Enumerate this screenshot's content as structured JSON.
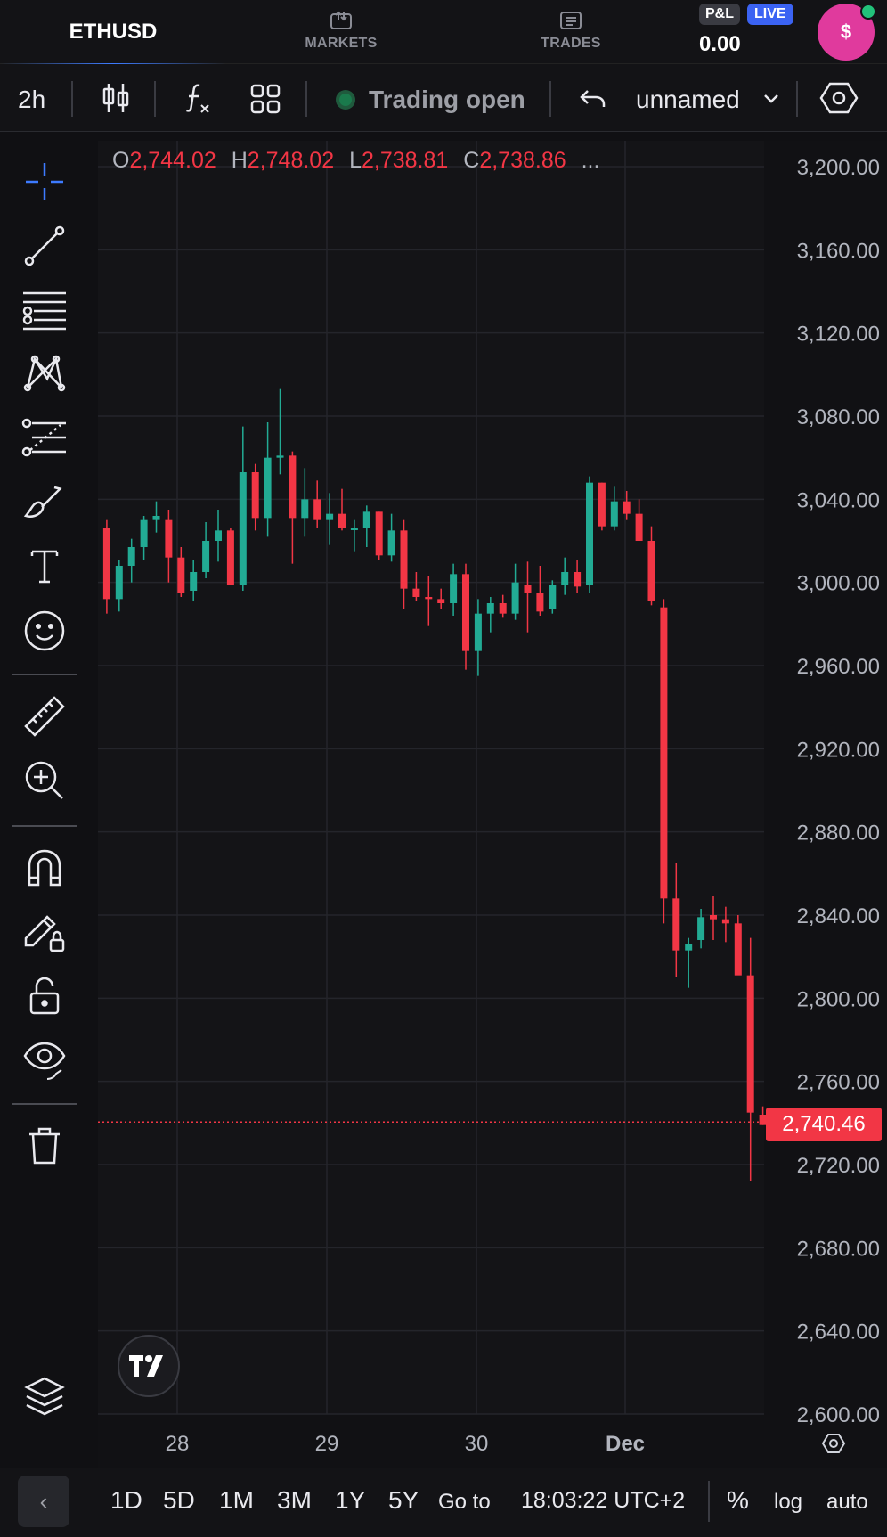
{
  "topbar": {
    "symbol_tab": "ETHUSD",
    "markets_label": "MARKETS",
    "trades_label": "TRADES",
    "pnl_badge": "P&L",
    "live_badge": "LIVE",
    "pnl_value": "0.00",
    "avatar_symbol": "$"
  },
  "toolbar": {
    "interval": "2h",
    "status": "Trading open",
    "layout_name": "unnamed",
    "icons": [
      "candles-icon",
      "indicators-fx-icon",
      "layouts-grid-icon",
      "undo-icon",
      "chevron-down-icon",
      "settings-hexagon-icon"
    ]
  },
  "left_tools": [
    "crosshair-icon",
    "trend-line-icon",
    "fib-lines-icon",
    "patterns-icon",
    "projection-icon",
    "brush-icon",
    "text-icon",
    "emoji-icon",
    "ruler-icon",
    "zoom-in-icon",
    "magnet-icon",
    "lock-drawing-icon",
    "unlock-icon",
    "eye-icon",
    "trash-icon",
    "layers-icon"
  ],
  "ohlc": {
    "o_label": "O",
    "o_value": "2,744.02",
    "h_label": "H",
    "h_value": "2,748.02",
    "l_label": "L",
    "l_value": "2,738.81",
    "c_label": "C",
    "c_value": "2,738.86",
    "more": "..."
  },
  "current_price": "2,740.46",
  "bottom": {
    "collapse": "‹",
    "ranges": [
      "1D",
      "5D",
      "1M",
      "3M",
      "1Y",
      "5Y"
    ],
    "goto": "Go to",
    "time": "18:03:22 UTC+2",
    "percent": "%",
    "log": "log",
    "auto": "auto"
  },
  "colors": {
    "up": "#22ab94",
    "down": "#f23645",
    "background": "#101013",
    "grid": "#24252b",
    "accent": "#3d7bff"
  },
  "chart_data": {
    "type": "candlestick",
    "symbol": "ETHUSD",
    "interval": "2h",
    "ylim": [
      2600,
      3200
    ],
    "y_ticks": [
      "3,200.00",
      "3,160.00",
      "3,120.00",
      "3,080.00",
      "3,040.00",
      "3,000.00",
      "2,960.00",
      "2,920.00",
      "2,880.00",
      "2,840.00",
      "2,800.00",
      "2,760.00",
      "2,720.00",
      "2,680.00",
      "2,640.00",
      "2,600.00"
    ],
    "x_ticks": [
      "28",
      "29",
      "30",
      "Dec"
    ],
    "candles": [
      {
        "o": 3026,
        "h": 3030,
        "l": 3021,
        "c": 3024
      },
      {
        "o": 3026,
        "h": 3030,
        "l": 2985,
        "c": 2992
      },
      {
        "o": 2992,
        "h": 3011,
        "l": 2986,
        "c": 3008
      },
      {
        "o": 3008,
        "h": 3021,
        "l": 3000,
        "c": 3017
      },
      {
        "o": 3017,
        "h": 3032,
        "l": 3011,
        "c": 3030
      },
      {
        "o": 3030,
        "h": 3039,
        "l": 3024,
        "c": 3032
      },
      {
        "o": 3030,
        "h": 3035,
        "l": 3000,
        "c": 3012
      },
      {
        "o": 3012,
        "h": 3017,
        "l": 2993,
        "c": 2995
      },
      {
        "o": 2996,
        "h": 3011,
        "l": 2991,
        "c": 3005
      },
      {
        "o": 3005,
        "h": 3029,
        "l": 3002,
        "c": 3020
      },
      {
        "o": 3020,
        "h": 3035,
        "l": 3010,
        "c": 3025
      },
      {
        "o": 3025,
        "h": 3026,
        "l": 2999,
        "c": 2999
      },
      {
        "o": 2999,
        "h": 3075,
        "l": 2996,
        "c": 3053
      },
      {
        "o": 3053,
        "h": 3057,
        "l": 3025,
        "c": 3031
      },
      {
        "o": 3031,
        "h": 3077,
        "l": 3022,
        "c": 3060
      },
      {
        "o": 3060,
        "h": 3093,
        "l": 3052,
        "c": 3061
      },
      {
        "o": 3061,
        "h": 3063,
        "l": 3009,
        "c": 3031
      },
      {
        "o": 3031,
        "h": 3055,
        "l": 3022,
        "c": 3040
      },
      {
        "o": 3040,
        "h": 3049,
        "l": 3026,
        "c": 3030
      },
      {
        "o": 3030,
        "h": 3043,
        "l": 3018,
        "c": 3033
      },
      {
        "o": 3033,
        "h": 3045,
        "l": 3025,
        "c": 3026
      },
      {
        "o": 3026,
        "h": 3030,
        "l": 3015,
        "c": 3026
      },
      {
        "o": 3026,
        "h": 3037,
        "l": 3017,
        "c": 3034
      },
      {
        "o": 3034,
        "h": 3034,
        "l": 3011,
        "c": 3013
      },
      {
        "o": 3013,
        "h": 3033,
        "l": 3010,
        "c": 3025
      },
      {
        "o": 3025,
        "h": 3030,
        "l": 2987,
        "c": 2997
      },
      {
        "o": 2997,
        "h": 3005,
        "l": 2991,
        "c": 2993
      },
      {
        "o": 2993,
        "h": 3003,
        "l": 2979,
        "c": 2992
      },
      {
        "o": 2992,
        "h": 2997,
        "l": 2987,
        "c": 2990
      },
      {
        "o": 2990,
        "h": 3009,
        "l": 2984,
        "c": 3004
      },
      {
        "o": 3004,
        "h": 3009,
        "l": 2958,
        "c": 2967
      },
      {
        "o": 2967,
        "h": 2992,
        "l": 2955,
        "c": 2985
      },
      {
        "o": 2985,
        "h": 2993,
        "l": 2976,
        "c": 2990
      },
      {
        "o": 2990,
        "h": 2994,
        "l": 2983,
        "c": 2985
      },
      {
        "o": 2985,
        "h": 3009,
        "l": 2982,
        "c": 3000
      },
      {
        "o": 2999,
        "h": 3010,
        "l": 2976,
        "c": 2995
      },
      {
        "o": 2995,
        "h": 3008,
        "l": 2984,
        "c": 2986
      },
      {
        "o": 2987,
        "h": 3001,
        "l": 2985,
        "c": 2999
      },
      {
        "o": 2999,
        "h": 3012,
        "l": 2994,
        "c": 3005
      },
      {
        "o": 3005,
        "h": 3011,
        "l": 2995,
        "c": 2998
      },
      {
        "o": 2999,
        "h": 3051,
        "l": 2995,
        "c": 3048
      },
      {
        "o": 3048,
        "h": 3048,
        "l": 3025,
        "c": 3027
      },
      {
        "o": 3027,
        "h": 3046,
        "l": 3025,
        "c": 3039
      },
      {
        "o": 3039,
        "h": 3044,
        "l": 3030,
        "c": 3033
      },
      {
        "o": 3033,
        "h": 3040,
        "l": 3024,
        "c": 3020
      },
      {
        "o": 3020,
        "h": 3027,
        "l": 2989,
        "c": 2991
      },
      {
        "o": 2988,
        "h": 2992,
        "l": 2836,
        "c": 2848
      },
      {
        "o": 2848,
        "h": 2865,
        "l": 2810,
        "c": 2823
      },
      {
        "o": 2823,
        "h": 2829,
        "l": 2805,
        "c": 2826
      },
      {
        "o": 2828,
        "h": 2843,
        "l": 2824,
        "c": 2839
      },
      {
        "o": 2840,
        "h": 2849,
        "l": 2828,
        "c": 2838
      },
      {
        "o": 2838,
        "h": 2844,
        "l": 2827,
        "c": 2836
      },
      {
        "o": 2836,
        "h": 2840,
        "l": 2814,
        "c": 2811
      },
      {
        "o": 2811,
        "h": 2829,
        "l": 2712,
        "c": 2745
      },
      {
        "o": 2744,
        "h": 2748,
        "l": 2739,
        "c": 2739
      }
    ],
    "current_price": 2740.46,
    "grid": true
  }
}
